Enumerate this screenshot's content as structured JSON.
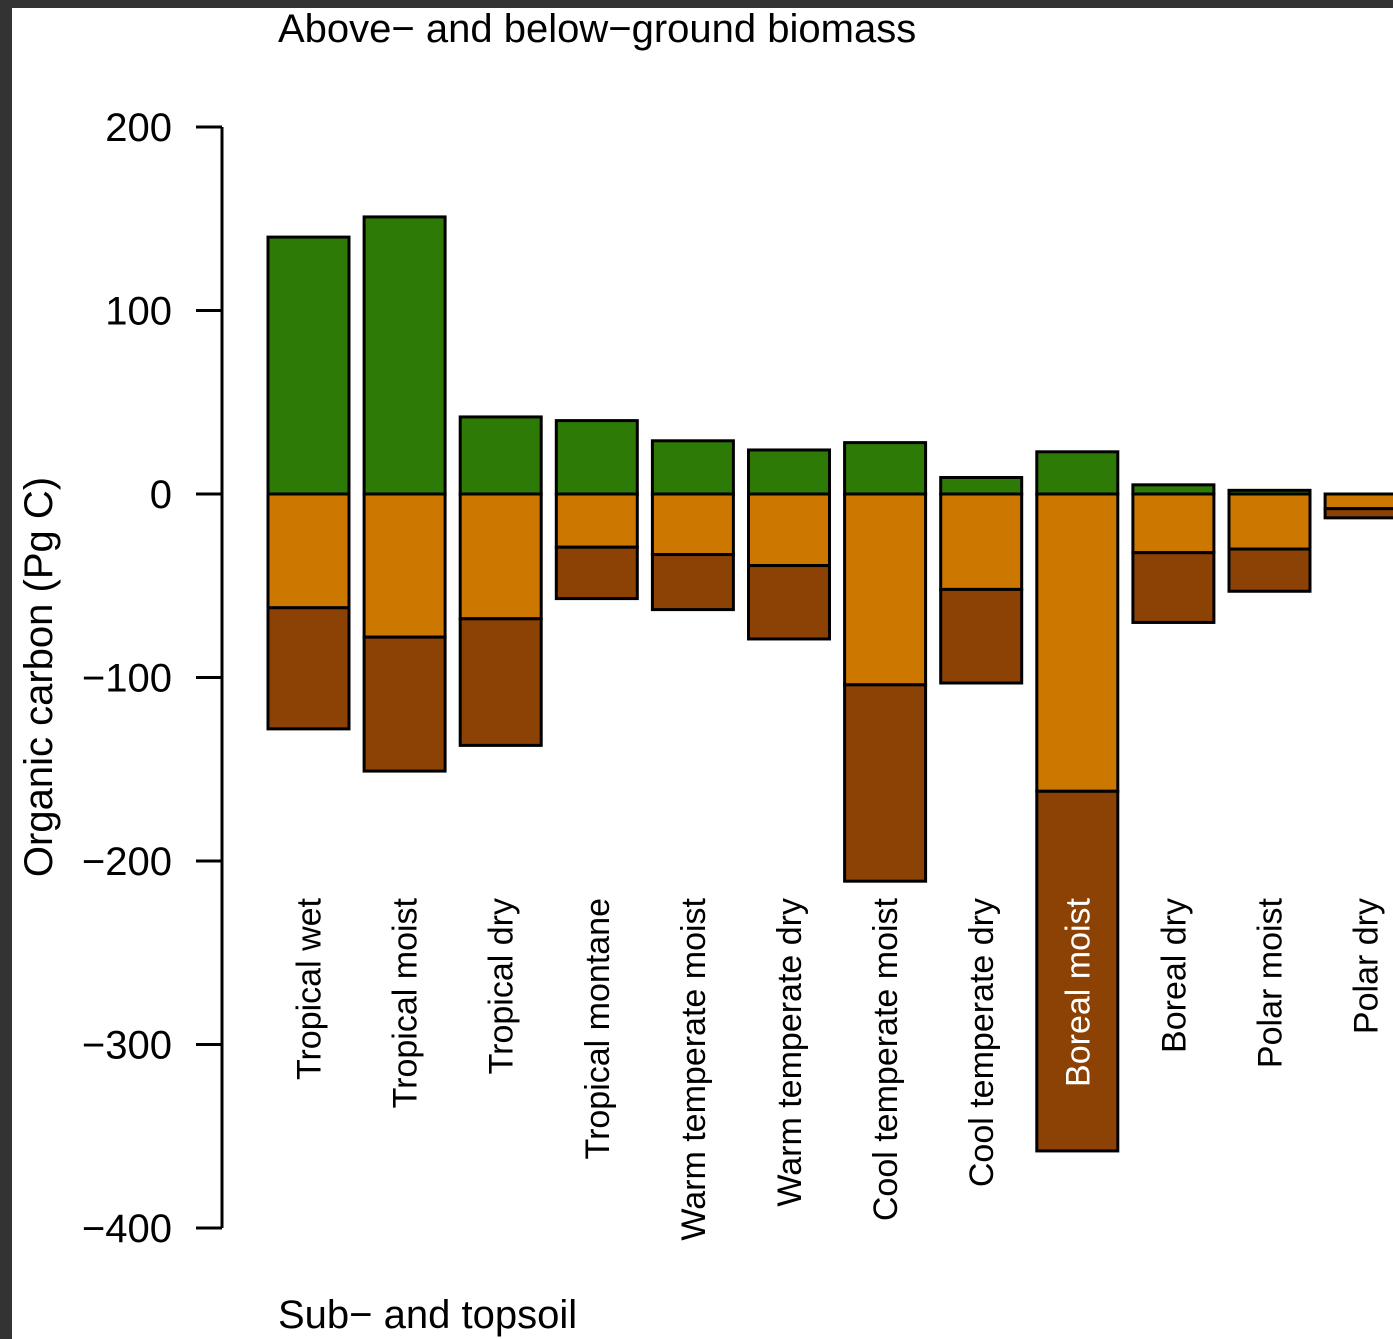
{
  "chart_data": {
    "type": "bar",
    "stacked": true,
    "diverging": true,
    "title_top": "Above− and below−ground biomass",
    "title_bottom": "Sub− and topsoil",
    "ylabel": "Organic carbon (Pg C)",
    "xlabel": "",
    "ylim": [
      -400,
      200
    ],
    "yticks": [
      "200",
      "100",
      "0",
      "−100",
      "−200",
      "−300",
      "−400"
    ],
    "ytick_values": [
      200,
      100,
      0,
      -100,
      -200,
      -300,
      -400
    ],
    "grid": false,
    "legend": "none",
    "categories": [
      "Tropical wet",
      "Tropical moist",
      "Tropical dry",
      "Tropical montane",
      "Warm temperate moist",
      "Warm temperate dry",
      "Cool temperate moist",
      "Cool temperate dry",
      "Boreal moist",
      "Boreal dry",
      "Polar moist",
      "Polar dry"
    ],
    "series": [
      {
        "key": "biomass",
        "color": "#2e7a06",
        "values": [
          140,
          151,
          42,
          40,
          29,
          24,
          28,
          9,
          23,
          5,
          2,
          0
        ]
      },
      {
        "key": "topsoil",
        "color": "#cc7700",
        "values": [
          -62,
          -78,
          -68,
          -29,
          -33,
          -39,
          -104,
          -52,
          -162,
          -32,
          -30,
          -8
        ]
      },
      {
        "key": "subsoil",
        "color": "#8b4204",
        "values": [
          -66,
          -73,
          -69,
          -28,
          -30,
          -40,
          -107,
          -51,
          -196,
          -38,
          -23,
          -5
        ]
      }
    ],
    "label_inverse_category": "Boreal moist"
  }
}
